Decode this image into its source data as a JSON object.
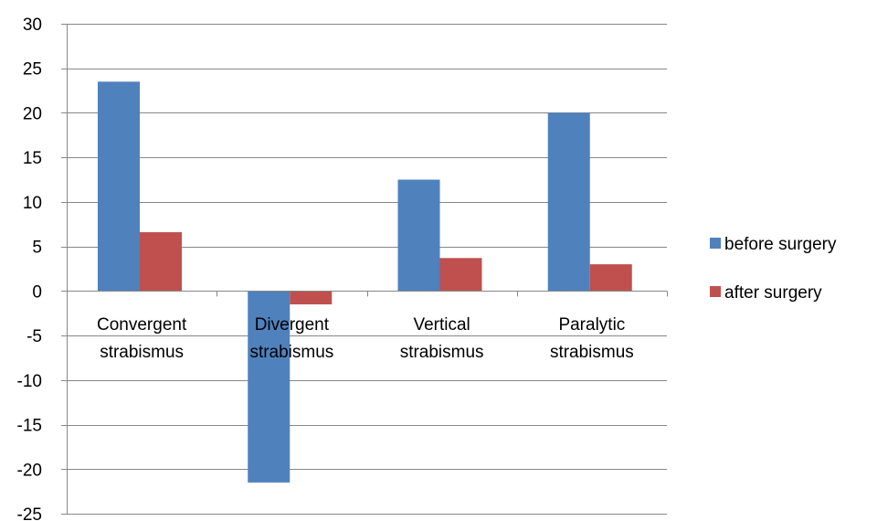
{
  "chart_data": {
    "type": "bar",
    "title": "",
    "xlabel": "",
    "ylabel": "",
    "categories": [
      [
        "Convergent",
        "strabismus"
      ],
      [
        "Divergent",
        "strabismus"
      ],
      [
        "Vertical",
        "strabismus"
      ],
      [
        "Paralytic",
        "strabismus"
      ]
    ],
    "series": [
      {
        "name": "before surgery",
        "color": "#4f81bd",
        "values": [
          23.5,
          -21.5,
          12.5,
          20
        ]
      },
      {
        "name": "after surgery",
        "color": "#c0504d",
        "values": [
          6.6,
          -1.5,
          3.7,
          3
        ]
      }
    ],
    "ylim": [
      -25,
      30
    ],
    "yticks": [
      30,
      25,
      20,
      15,
      10,
      5,
      0,
      -5,
      -10,
      -15,
      -20,
      -25
    ],
    "grid": true,
    "legend_position": "right"
  }
}
